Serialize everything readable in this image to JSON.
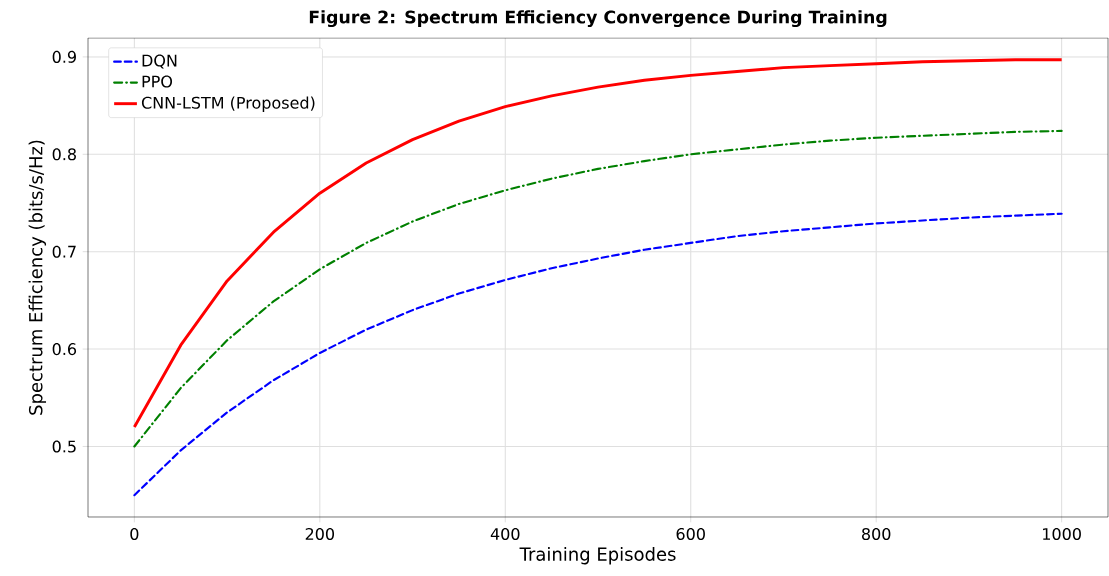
{
  "chart_data": {
    "type": "line",
    "title": "Figure 2: Spectrum Efficiency Convergence During Training",
    "xlabel": "Training Episodes",
    "ylabel": "Spectrum Efficiency (bits/s/Hz)",
    "x": [
      0,
      50,
      100,
      150,
      200,
      250,
      300,
      350,
      400,
      450,
      500,
      550,
      600,
      650,
      700,
      750,
      800,
      850,
      900,
      950,
      1000
    ],
    "series": [
      {
        "name": "DQN",
        "color": "#0000ff",
        "line_style": "dashed",
        "values": [
          0.45,
          0.496,
          0.535,
          0.568,
          0.596,
          0.62,
          0.64,
          0.657,
          0.671,
          0.683,
          0.693,
          0.702,
          0.709,
          0.716,
          0.721,
          0.725,
          0.729,
          0.732,
          0.735,
          0.737,
          0.739
        ]
      },
      {
        "name": "PPO",
        "color": "#008000",
        "line_style": "dashdot",
        "values": [
          0.5,
          0.56,
          0.609,
          0.649,
          0.682,
          0.709,
          0.731,
          0.749,
          0.763,
          0.775,
          0.785,
          0.793,
          0.8,
          0.805,
          0.81,
          0.814,
          0.817,
          0.819,
          0.821,
          0.823,
          0.824
        ]
      },
      {
        "name": "CNN-LSTM (Proposed)",
        "color": "#ff0000",
        "line_style": "solid",
        "values": [
          0.52,
          0.604,
          0.67,
          0.72,
          0.76,
          0.791,
          0.815,
          0.834,
          0.849,
          0.86,
          0.869,
          0.876,
          0.881,
          0.885,
          0.889,
          0.891,
          0.893,
          0.895,
          0.896,
          0.897,
          0.897
        ]
      }
    ],
    "xlim": [
      -50,
      1050
    ],
    "ylim": [
      0.4276,
      0.9194
    ],
    "xticks": [
      0,
      200,
      400,
      600,
      800,
      1000
    ],
    "yticks": [
      0.5,
      0.6,
      0.7,
      0.8,
      0.9
    ],
    "grid": true,
    "legend": "top left",
    "marker": "none"
  }
}
